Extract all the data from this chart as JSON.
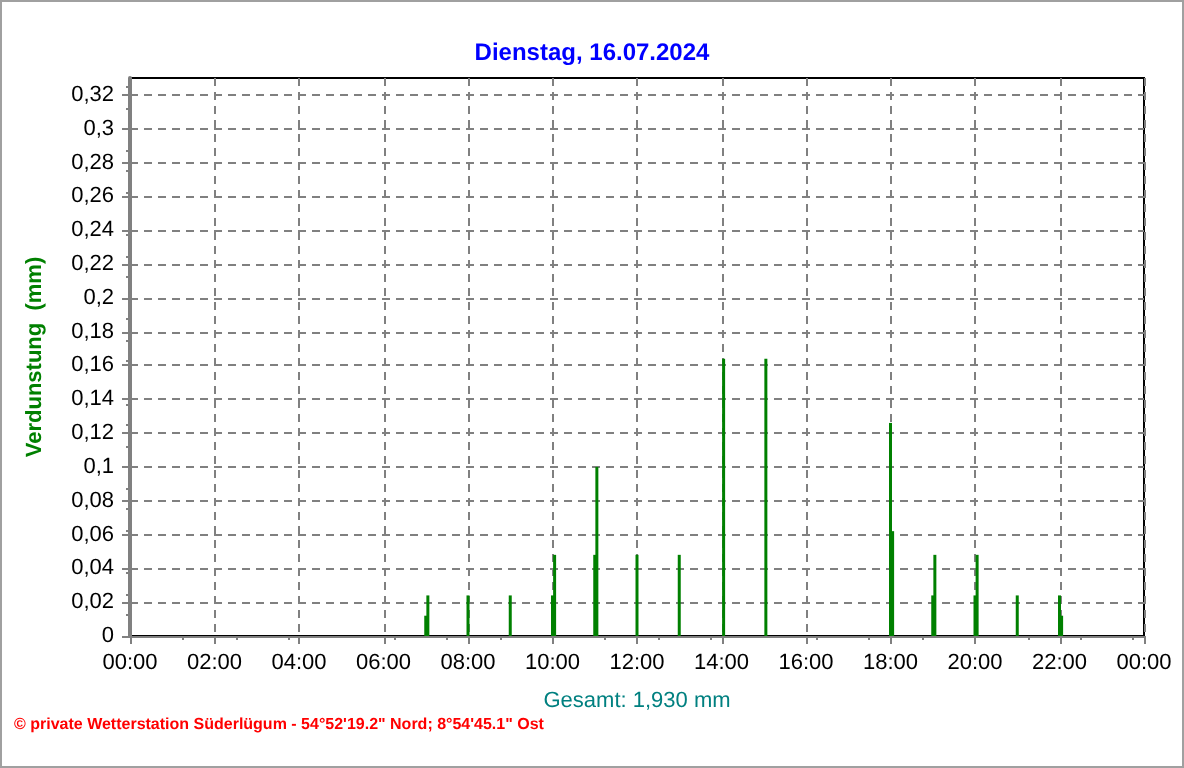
{
  "chart_data": {
    "type": "bar",
    "title": "Dienstag, 16.07.2024",
    "xlabel": "Gesamt: 1,930 mm",
    "ylabel": "Verdunstung  (mm)",
    "annotations": [
      "© private Wetterstation Süderlügum - 54°52'19.2\" Nord; 8°54'45.1\" Ost"
    ],
    "x": [
      7,
      7.05,
      8,
      9,
      10,
      10.05,
      11,
      11.05,
      12,
      13,
      14,
      14.05,
      15,
      15.05,
      16,
      17,
      18,
      18.05,
      19,
      19.05,
      20,
      20.05,
      21,
      22,
      22.05
    ],
    "series": [
      {
        "color": "#008000",
        "values": [
          0.012,
          0.024,
          0.024,
          0.024,
          0.024,
          0.048,
          0.048,
          0.1,
          0.048,
          0.048,
          null,
          0.164,
          null,
          0.164,
          null,
          null,
          0.126,
          0.062,
          0.024,
          0.048,
          0.024,
          0.048,
          0.024,
          0.024,
          0.012
        ]
      }
    ],
    "xlim": [
      0,
      24
    ],
    "xticks": [
      {
        "value": 0,
        "label": "00:00"
      },
      {
        "value": 2,
        "label": "02:00"
      },
      {
        "value": 4,
        "label": "04:00"
      },
      {
        "value": 6,
        "label": "06:00"
      },
      {
        "value": 8,
        "label": "08:00"
      },
      {
        "value": 10,
        "label": "10:00"
      },
      {
        "value": 12,
        "label": "12:00"
      },
      {
        "value": 14,
        "label": "14:00"
      },
      {
        "value": 16,
        "label": "16:00"
      },
      {
        "value": 18,
        "label": "18:00"
      },
      {
        "value": 20,
        "label": "20:00"
      },
      {
        "value": 22,
        "label": "22:00"
      },
      {
        "value": 24,
        "label": "00:00"
      }
    ],
    "ylim": [
      0,
      0.33
    ],
    "yticks": [
      0,
      {
        "value": 0.02,
        "label": "0,02"
      },
      {
        "value": 0.04,
        "label": "0,04"
      },
      {
        "value": 0.06,
        "label": "0,06"
      },
      {
        "value": 0.08,
        "label": "0,08"
      },
      {
        "value": 0.1,
        "label": "0,1"
      },
      {
        "value": 0.12,
        "label": "0,12"
      },
      {
        "value": 0.14,
        "label": "0,14"
      },
      {
        "value": 0.16,
        "label": "0,16"
      },
      {
        "value": 0.18,
        "label": "0,18"
      },
      {
        "value": 0.2,
        "label": "0,2"
      },
      {
        "value": 0.22,
        "label": "0,22"
      },
      {
        "value": 0.24,
        "label": "0,24"
      },
      {
        "value": 0.26,
        "label": "0,26"
      },
      {
        "value": 0.28,
        "label": "0,28"
      },
      {
        "value": 0.3,
        "label": "0,3"
      },
      {
        "value": 0.32,
        "label": "0,32"
      }
    ],
    "grid": true
  }
}
